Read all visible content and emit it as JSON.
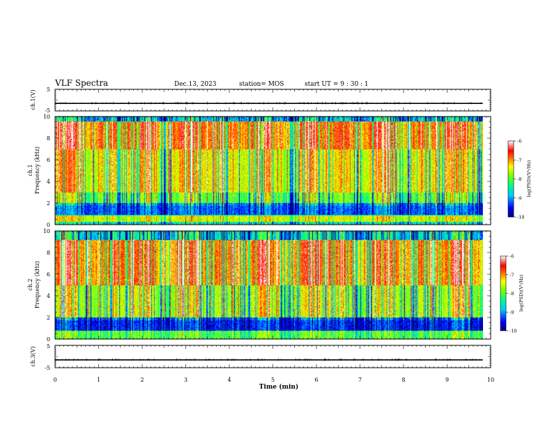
{
  "header": {
    "title": "VLF Spectra",
    "date": "Dec.13, 2023",
    "station": "station= MOS",
    "start": "start  UT =   9 : 30 : 1"
  },
  "chart_data": [
    {
      "type": "line",
      "panel": "ch1-waveform",
      "ylabel": "ch.1(V)",
      "ylim": [
        -5,
        5
      ],
      "yticks": [
        "5",
        "-5"
      ],
      "level": -1.5
    },
    {
      "type": "heatmap",
      "panel": "ch1-spectrogram",
      "ylabel": "ch.1 Frequency (kHz)",
      "ylim": [
        0,
        10
      ],
      "yticks": [
        "0",
        "2",
        "4",
        "6",
        "8",
        "10"
      ],
      "colorbar": {
        "label": "log(PSD)(V²/Hz)",
        "range": [
          -10,
          -6
        ],
        "ticks": [
          "-6",
          "-7",
          "-8",
          "-9",
          "-10"
        ]
      }
    },
    {
      "type": "heatmap",
      "panel": "ch2-spectrogram",
      "ylabel": "ch.2 Frequency (kHz)",
      "ylim": [
        0,
        10
      ],
      "yticks": [
        "0",
        "2",
        "4",
        "6",
        "8",
        "10"
      ],
      "colorbar": {
        "label": "log(PSD)(V²/Hz)",
        "range": [
          -10,
          -6
        ],
        "ticks": [
          "-6",
          "-7",
          "-8",
          "-9",
          "-10"
        ]
      }
    },
    {
      "type": "line",
      "panel": "ch3-waveform",
      "ylabel": "ch.3(V)",
      "ylim": [
        -5,
        5
      ],
      "yticks": [
        "5",
        "-5"
      ],
      "level": -1.5
    }
  ],
  "xaxis": {
    "label": "Time  (min)",
    "xlim": [
      0,
      10
    ],
    "ticks": [
      "0",
      "1",
      "2",
      "3",
      "4",
      "5",
      "6",
      "7",
      "8",
      "9",
      "10"
    ],
    "data_end": 9.82
  },
  "colors": {
    "colormap": [
      "#00007f",
      "#0000ff",
      "#00c8ff",
      "#00ff80",
      "#80ff00",
      "#ffff00",
      "#ff8000",
      "#ff0000",
      "#ffffff"
    ]
  }
}
